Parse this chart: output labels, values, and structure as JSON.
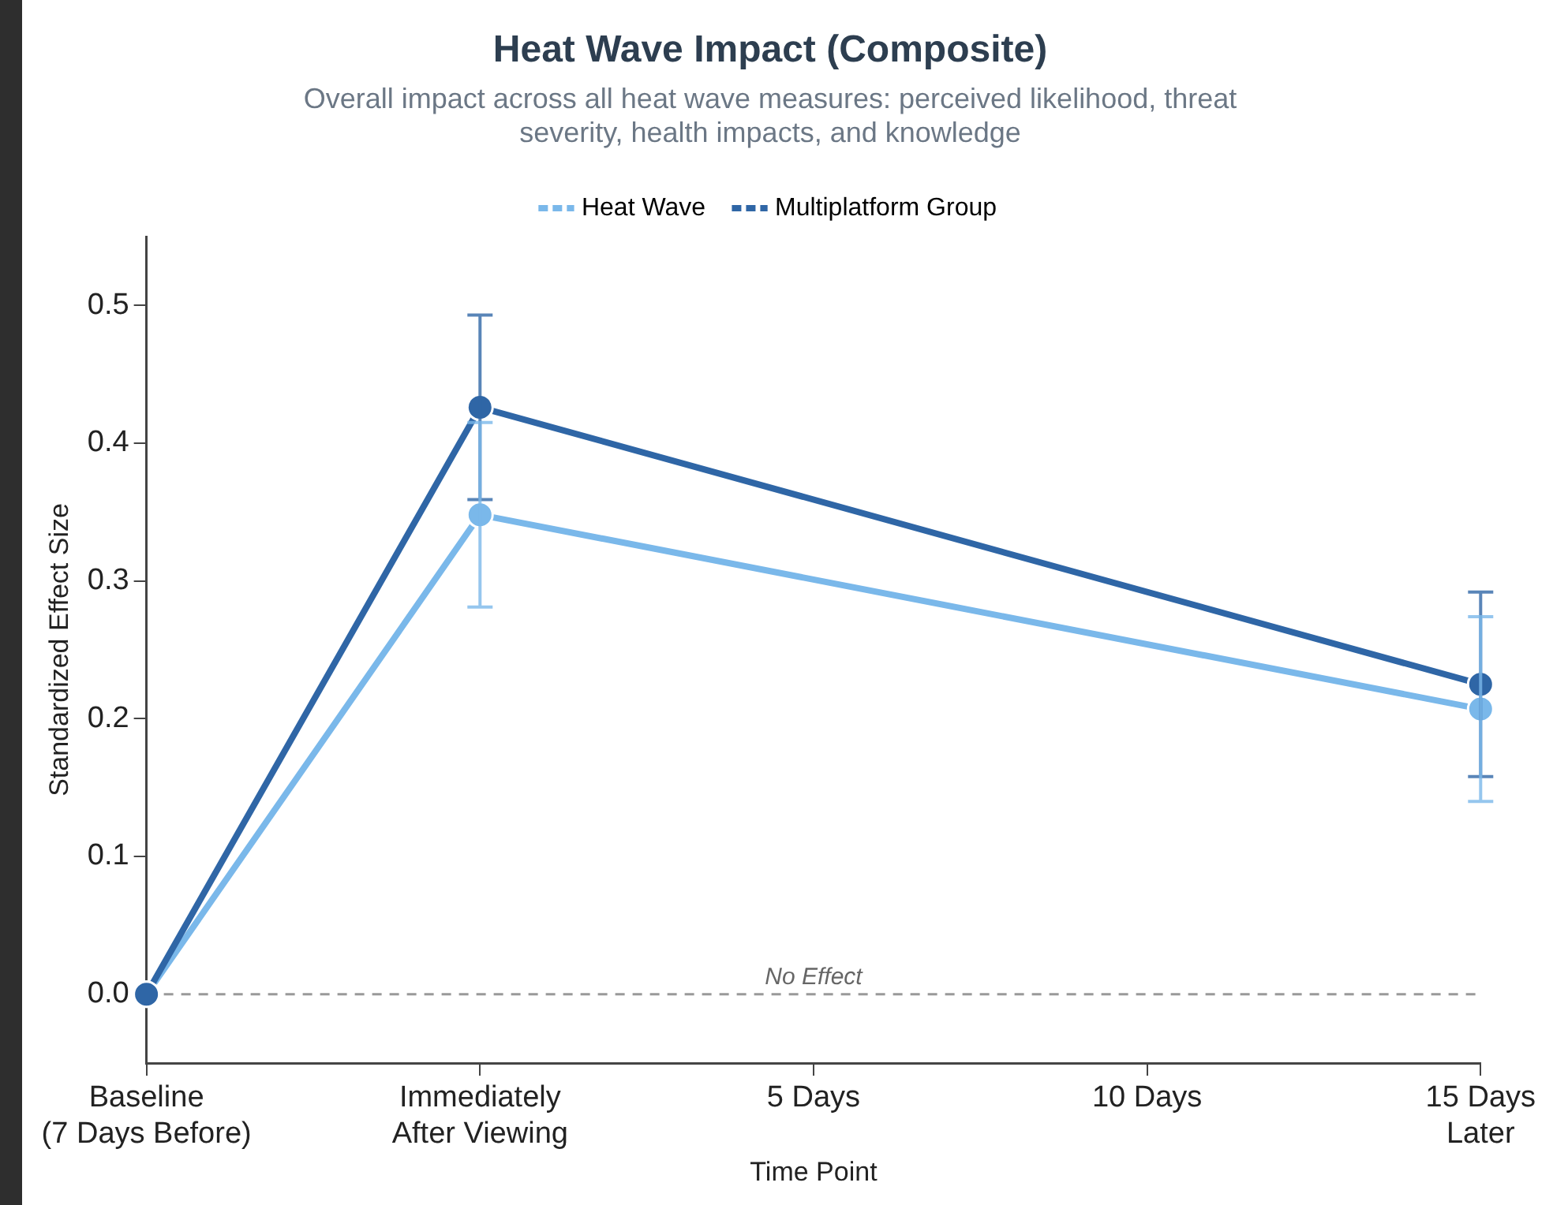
{
  "chart_data": {
    "type": "line",
    "title": "Heat Wave Impact (Composite)",
    "subtitle": "Overall impact across all heat wave measures: perceived likelihood, threat severity, health impacts, and knowledge",
    "xlabel": "Time Point",
    "ylabel": "Standardized Effect Size",
    "categories": [
      "Baseline\n(7 Days Before)",
      "Immediately\nAfter Viewing",
      "5 Days",
      "10 Days",
      "15 Days\nLater"
    ],
    "series": [
      {
        "name": "Heat Wave",
        "color": "#7ab8ea",
        "values": [
          0,
          0.348,
          null,
          null,
          0.207
        ],
        "errors": [
          null,
          0.067,
          null,
          null,
          0.067
        ]
      },
      {
        "name": "Multiplatform Group",
        "color": "#2f66a6",
        "values": [
          0,
          0.426,
          null,
          null,
          0.225
        ],
        "errors": [
          null,
          0.067,
          null,
          null,
          0.067
        ]
      }
    ],
    "ylim": [
      -0.05,
      0.55
    ],
    "yticks": [
      {
        "value": 0,
        "label": "0.0"
      },
      {
        "value": 0.1,
        "label": "0.1"
      },
      {
        "value": 0.2,
        "label": "0.2"
      },
      {
        "value": 0.3,
        "label": "0.3"
      },
      {
        "value": 0.4,
        "label": "0.4"
      },
      {
        "value": 0.5,
        "label": "0.5"
      }
    ],
    "ref_lines": [
      {
        "axis": "y",
        "value": 0,
        "label": "No Effect",
        "color": "#999999",
        "line_style": "dashed"
      }
    ],
    "grid": false,
    "legend": "top",
    "marker": "circle",
    "line_style": "solid"
  }
}
